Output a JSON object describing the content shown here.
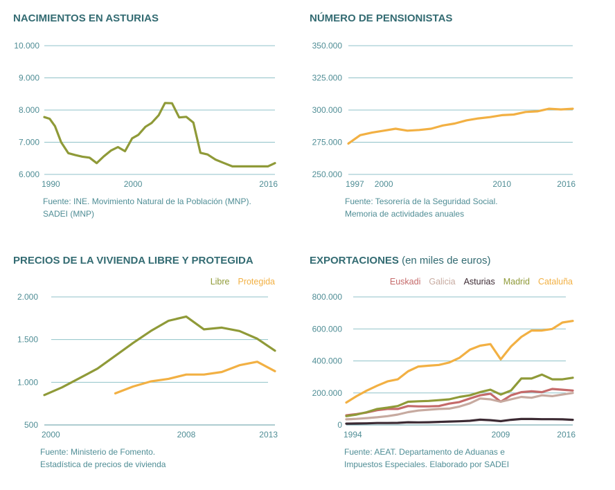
{
  "chart_data": [
    {
      "type": "line",
      "title": "NACIMIENTOS EN ASTURIAS",
      "title_suffix": "",
      "source": [
        "Fuente: INE. Movimiento Natural de la Población (MNP).",
        "SADEI (MNP)"
      ],
      "xlim": [
        1990,
        2016
      ],
      "ylim": [
        6000,
        10000
      ],
      "x_ticks": [
        1990,
        2000,
        2016
      ],
      "y_ticks": [
        6000,
        7000,
        8000,
        9000,
        10000
      ],
      "y_tick_labels": [
        "6.000",
        "7.000",
        "8.000",
        "9.000",
        "10.000"
      ],
      "grid": true,
      "legend": "none",
      "series": [
        {
          "color": "#8f9a38",
          "x": [
            1990,
            1990.6,
            1991.2,
            1991.9,
            1992.7,
            1993.5,
            1994.3,
            1995.1,
            1995.9,
            1996.7,
            1997.5,
            1998.3,
            1999.1,
            1999.9,
            2000.6,
            2001.4,
            2002.1,
            2002.9,
            2003.6,
            2004.4,
            2005.2,
            2006,
            2006.8,
            2007.6,
            2008.4,
            2009.3,
            2010.2,
            2011.2,
            2012.2,
            2013.2,
            2014.2,
            2015.2,
            2016
          ],
          "y": [
            7780,
            7730,
            7500,
            7000,
            6660,
            6600,
            6550,
            6520,
            6350,
            6560,
            6740,
            6850,
            6720,
            7120,
            7230,
            7480,
            7600,
            7840,
            8220,
            8210,
            7770,
            7790,
            7610,
            6670,
            6620,
            6460,
            6360,
            6250,
            6250,
            6250,
            6250,
            6250,
            6350
          ]
        }
      ]
    },
    {
      "type": "line",
      "title": "NÚMERO DE PENSIONISTAS",
      "title_suffix": "",
      "source": [
        "Fuente: Tesorería de la Seguridad Social.",
        "Memoria de actividades anuales"
      ],
      "xlim": [
        1997,
        2016
      ],
      "ylim": [
        250000,
        350000
      ],
      "x_ticks": [
        1997,
        2000,
        2010,
        2016
      ],
      "y_ticks": [
        250000,
        275000,
        300000,
        325000,
        350000
      ],
      "y_tick_labels": [
        "250.000",
        "275.000",
        "300.000",
        "325.000",
        "350.000"
      ],
      "grid": true,
      "legend": "none",
      "series": [
        {
          "color": "#f2b043",
          "x": [
            1997,
            1998,
            1999,
            2000,
            2001,
            2002,
            2003,
            2004,
            2005,
            2006,
            2007,
            2008,
            2009,
            2010,
            2011,
            2012,
            2013,
            2014,
            2015,
            2016
          ],
          "y": [
            274000,
            280500,
            282500,
            284000,
            285500,
            284000,
            284500,
            285500,
            288000,
            289500,
            292000,
            293500,
            294500,
            296000,
            296500,
            298500,
            299000,
            301000,
            300500,
            301000
          ]
        }
      ]
    },
    {
      "type": "line",
      "title": "PRECIOS DE LA VIVIENDA LIBRE Y PROTEGIDA",
      "title_suffix": "",
      "source": [
        "Fuente: Ministerio de Fomento.",
        "Estadística de precios de vivienda"
      ],
      "xlim": [
        2000,
        2013
      ],
      "ylim": [
        500,
        2000
      ],
      "x_ticks": [
        2000,
        2008,
        2013
      ],
      "y_ticks": [
        500,
        1000,
        1500,
        2000
      ],
      "y_tick_labels": [
        "500",
        "1.000",
        "1.500",
        "2.000"
      ],
      "grid": true,
      "legend": "top-right",
      "series": [
        {
          "name": "Libre",
          "color": "#8f9a38",
          "x": [
            2000,
            2001,
            2002,
            2003,
            2004,
            2005,
            2006,
            2007,
            2008,
            2009,
            2010,
            2011,
            2012,
            2013
          ],
          "y": [
            850,
            940,
            1050,
            1160,
            1310,
            1460,
            1600,
            1720,
            1770,
            1620,
            1640,
            1600,
            1510,
            1370
          ]
        },
        {
          "name": "Protegida",
          "color": "#f2b043",
          "x": [
            2004,
            2005,
            2006,
            2007,
            2008,
            2009,
            2010,
            2011,
            2012,
            2013
          ],
          "y": [
            870,
            950,
            1010,
            1040,
            1090,
            1090,
            1120,
            1200,
            1240,
            1130
          ]
        }
      ]
    },
    {
      "type": "line",
      "title": "EXPORTACIONES",
      "title_suffix": "(en miles de euros)",
      "source": [
        "Fuente: AEAT. Departamento de Aduanas e",
        "Impuestos Especiales. Elaborado por SADEI"
      ],
      "xlim": [
        1994,
        2016
      ],
      "ylim": [
        0,
        800000
      ],
      "x_ticks": [
        1994,
        2009,
        2016
      ],
      "y_ticks": [
        0,
        200000,
        400000,
        600000,
        800000
      ],
      "y_tick_labels": [
        "0",
        "200.000",
        "400.000",
        "600.000",
        "800.000"
      ],
      "grid": true,
      "legend": "top",
      "series": [
        {
          "name": "Euskadi",
          "color": "#c56a6a",
          "x": [
            1994,
            1995,
            1996,
            1997,
            1998,
            1999,
            2000,
            2001,
            2002,
            2003,
            2004,
            2005,
            2006,
            2007,
            2008,
            2009,
            2010,
            2011,
            2012,
            2013,
            2014,
            2015,
            2016
          ],
          "y": [
            60000,
            68000,
            78000,
            92000,
            100000,
            100000,
            118000,
            116000,
            116000,
            118000,
            133000,
            143000,
            165000,
            185000,
            195000,
            145000,
            185000,
            205000,
            210000,
            205000,
            225000,
            220000,
            215000
          ]
        },
        {
          "name": "Galicia",
          "color": "#c7aaa0",
          "x": [
            1994,
            1995,
            1996,
            1997,
            1998,
            1999,
            2000,
            2001,
            2002,
            2003,
            2004,
            2005,
            2006,
            2007,
            2008,
            2009,
            2010,
            2011,
            2012,
            2013,
            2014,
            2015,
            2016
          ],
          "y": [
            35000,
            38000,
            43000,
            48000,
            55000,
            65000,
            80000,
            90000,
            95000,
            100000,
            102000,
            115000,
            135000,
            165000,
            160000,
            145000,
            160000,
            175000,
            170000,
            185000,
            180000,
            190000,
            200000
          ]
        },
        {
          "name": "Asturias",
          "color": "#3c2a33",
          "x": [
            1994,
            1995,
            1996,
            1997,
            1998,
            1999,
            2000,
            2001,
            2002,
            2003,
            2004,
            2005,
            2006,
            2007,
            2008,
            2009,
            2010,
            2011,
            2012,
            2013,
            2014,
            2015,
            2016
          ],
          "y": [
            8000,
            9000,
            10000,
            12000,
            12000,
            13000,
            17000,
            16000,
            17000,
            19000,
            21000,
            23000,
            26000,
            33000,
            30000,
            24000,
            32000,
            37000,
            37000,
            36000,
            36000,
            35000,
            32000
          ]
        },
        {
          "name": "Madrid",
          "color": "#8f9a38",
          "x": [
            1994,
            1995,
            1996,
            1997,
            1998,
            1999,
            2000,
            2001,
            2002,
            2003,
            2004,
            2005,
            2006,
            2007,
            2008,
            2009,
            2010,
            2011,
            2012,
            2013,
            2014,
            2015,
            2016
          ],
          "y": [
            55000,
            65000,
            80000,
            100000,
            108000,
            118000,
            145000,
            148000,
            150000,
            155000,
            160000,
            175000,
            185000,
            205000,
            220000,
            190000,
            215000,
            290000,
            290000,
            315000,
            285000,
            285000,
            295000
          ]
        },
        {
          "name": "Cataluña",
          "color": "#f2b043",
          "x": [
            1994,
            1995,
            1996,
            1997,
            1998,
            1999,
            2000,
            2001,
            2002,
            2003,
            2004,
            2005,
            2006,
            2007,
            2008,
            2009,
            2010,
            2011,
            2012,
            2013,
            2014,
            2015,
            2016
          ],
          "y": [
            140000,
            180000,
            215000,
            245000,
            272000,
            285000,
            335000,
            365000,
            370000,
            375000,
            390000,
            420000,
            470000,
            495000,
            505000,
            410000,
            490000,
            550000,
            590000,
            590000,
            600000,
            640000,
            650000
          ]
        }
      ]
    }
  ]
}
